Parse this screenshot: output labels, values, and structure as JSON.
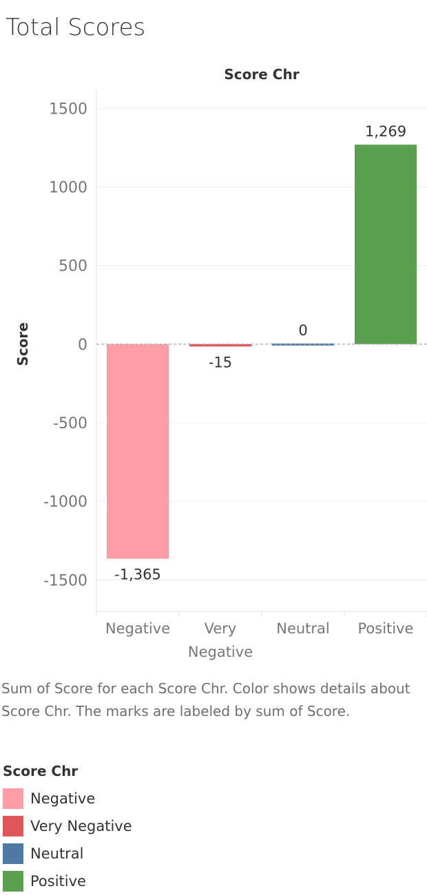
{
  "title": "Total Scores",
  "chart_data": {
    "type": "bar",
    "column_header": "Score Chr",
    "ylabel": "Score",
    "ylim": [
      -1700,
      1620
    ],
    "y_ticks": [
      1500,
      1000,
      500,
      0,
      -500,
      -1000,
      -1500
    ],
    "y_tick_labels": [
      "1500",
      "1000",
      "500",
      "0",
      "-500",
      "-1000",
      "-1500"
    ],
    "categories": [
      "Negative",
      "Very Negative",
      "Neutral",
      "Positive"
    ],
    "category_lines": [
      [
        "Negative"
      ],
      [
        "Very",
        "Negative"
      ],
      [
        "Neutral"
      ],
      [
        "Positive"
      ]
    ],
    "values": [
      -1365,
      -15,
      0,
      1269
    ],
    "value_labels": [
      "-1,365",
      "-15",
      "0",
      "1,269"
    ],
    "colors": [
      "#ff9da7",
      "#e15759",
      "#4e79a7",
      "#59a14f"
    ],
    "grid": true,
    "zero_line": "dashed"
  },
  "caption": "Sum of Score for each Score Chr.  Color shows details about Score Chr.  The marks are labeled by sum of Score.",
  "legend": {
    "title": "Score Chr",
    "items": [
      {
        "label": "Negative",
        "color": "#ff9da7"
      },
      {
        "label": "Very Negative",
        "color": "#e15759"
      },
      {
        "label": "Neutral",
        "color": "#4e79a7"
      },
      {
        "label": "Positive",
        "color": "#59a14f"
      }
    ]
  }
}
